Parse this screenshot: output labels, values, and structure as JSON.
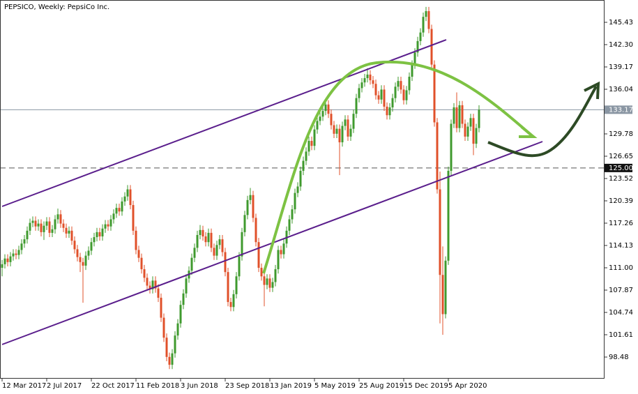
{
  "chart_data": {
    "type": "candlestick",
    "title": "PEPSICO, Weekly:  PepsiCo Inc.",
    "up_color": "#3f9a2e",
    "down_color": "#e0502a",
    "ylim": [
      95.45,
      148.56
    ],
    "yticks": [
      145.43,
      {
        "value": 142.3,
        "label": "142.30"
      },
      139.17,
      136.04,
      129.78,
      126.65,
      123.52,
      120.39,
      117.26,
      114.13,
      {
        "value": 111,
        "label": "111.00"
      },
      107.87,
      104.74,
      101.61,
      98.48
    ],
    "xtick_labels": [
      "12 Mar 2017",
      "2 Jul 2017",
      "22 Oct 2017",
      "11 Feb 2018",
      "3 Jun 2018",
      "23 Sep 2018",
      "13 Jan 2019",
      "5 May 2019",
      "25 Aug 2019",
      "15 Dec 2019",
      "5 Apr 2020"
    ],
    "price_line": 133.17,
    "level_line": {
      "value": 125,
      "label": "125.00"
    },
    "candles": [
      [
        111.0,
        112.1,
        109.8,
        111.5
      ],
      [
        111.5,
        112.9,
        110.9,
        112.3
      ],
      [
        112.3,
        112.9,
        111.2,
        111.8
      ],
      [
        111.8,
        113.2,
        111.2,
        112.6
      ],
      [
        112.6,
        113.6,
        112.0,
        113.0
      ],
      [
        113.0,
        113.6,
        112.2,
        112.8
      ],
      [
        112.8,
        114.1,
        112.2,
        113.5
      ],
      [
        113.5,
        115.0,
        112.9,
        114.4
      ],
      [
        114.4,
        115.6,
        113.8,
        115.0
      ],
      [
        115.0,
        116.8,
        114.4,
        116.2
      ],
      [
        116.2,
        117.9,
        115.6,
        117.3
      ],
      [
        117.3,
        118.2,
        116.7,
        117.6
      ],
      [
        117.6,
        118.2,
        116.2,
        116.8
      ],
      [
        116.8,
        117.8,
        116.2,
        117.2
      ],
      [
        117.2,
        117.8,
        115.4,
        116.0
      ],
      [
        116.0,
        117.5,
        114.9,
        116.9
      ],
      [
        116.9,
        118.1,
        116.3,
        117.5
      ],
      [
        117.5,
        118.1,
        115.3,
        115.9
      ],
      [
        115.9,
        117.0,
        115.3,
        116.4
      ],
      [
        116.4,
        118.4,
        115.8,
        117.8
      ],
      [
        117.8,
        119.3,
        117.2,
        118.5
      ],
      [
        118.5,
        119.1,
        116.6,
        117.2
      ],
      [
        117.2,
        117.8,
        116.0,
        116.6
      ],
      [
        116.6,
        117.2,
        115.2,
        115.8
      ],
      [
        115.8,
        116.8,
        115.2,
        116.2
      ],
      [
        116.2,
        116.8,
        114.2,
        114.8
      ],
      [
        114.8,
        115.4,
        113.0,
        113.6
      ],
      [
        113.6,
        114.2,
        111.9,
        112.5
      ],
      [
        112.5,
        113.1,
        110.4,
        111.8
      ],
      [
        111.8,
        112.4,
        106.1,
        111.3
      ],
      [
        111.3,
        113.3,
        110.7,
        112.7
      ],
      [
        112.7,
        114.0,
        112.1,
        113.4
      ],
      [
        113.4,
        115.2,
        112.8,
        114.6
      ],
      [
        114.6,
        115.9,
        114.0,
        115.3
      ],
      [
        115.3,
        116.6,
        114.7,
        116.0
      ],
      [
        116.0,
        116.6,
        114.8,
        115.4
      ],
      [
        115.4,
        117.1,
        114.8,
        116.5
      ],
      [
        116.5,
        117.7,
        115.9,
        117.1
      ],
      [
        117.1,
        117.7,
        116.2,
        116.8
      ],
      [
        116.8,
        118.4,
        116.2,
        117.8
      ],
      [
        117.8,
        119.2,
        117.2,
        118.6
      ],
      [
        118.6,
        120.0,
        118.0,
        119.4
      ],
      [
        119.4,
        120.0,
        118.3,
        118.9
      ],
      [
        118.9,
        120.9,
        118.3,
        120.3
      ],
      [
        120.3,
        121.6,
        119.7,
        121.0
      ],
      [
        121.0,
        122.6,
        120.4,
        122.0
      ],
      [
        122.0,
        122.6,
        119.2,
        119.8
      ],
      [
        119.8,
        120.4,
        115.6,
        116.2
      ],
      [
        116.2,
        116.8,
        112.9,
        113.5
      ],
      [
        113.5,
        114.1,
        111.8,
        112.4
      ],
      [
        112.4,
        113.0,
        110.2,
        110.8
      ],
      [
        110.8,
        111.4,
        109.0,
        109.6
      ],
      [
        109.6,
        110.2,
        107.9,
        108.5
      ],
      [
        108.5,
        109.1,
        107.4,
        108.0
      ],
      [
        108.0,
        109.8,
        107.4,
        109.2
      ],
      [
        109.2,
        109.8,
        107.5,
        108.1
      ],
      [
        108.1,
        108.7,
        106.2,
        106.8
      ],
      [
        106.8,
        107.4,
        103.4,
        104.0
      ],
      [
        104.0,
        104.6,
        100.6,
        101.2
      ],
      [
        101.2,
        101.8,
        97.9,
        98.5
      ],
      [
        98.5,
        99.1,
        96.8,
        97.4
      ],
      [
        97.4,
        99.6,
        96.8,
        99.0
      ],
      [
        99.0,
        102.1,
        98.4,
        101.5
      ],
      [
        101.5,
        103.8,
        100.9,
        103.2
      ],
      [
        103.2,
        106.4,
        102.6,
        105.8
      ],
      [
        105.8,
        108.0,
        105.2,
        107.4
      ],
      [
        107.4,
        110.1,
        106.8,
        109.5
      ],
      [
        109.5,
        111.2,
        108.9,
        110.6
      ],
      [
        110.6,
        113.0,
        110.0,
        112.4
      ],
      [
        112.4,
        114.4,
        111.8,
        113.8
      ],
      [
        113.8,
        116.2,
        113.2,
        115.6
      ],
      [
        115.6,
        117.0,
        115.0,
        116.3
      ],
      [
        116.3,
        116.9,
        114.8,
        115.4
      ],
      [
        115.4,
        116.0,
        114.0,
        114.6
      ],
      [
        114.6,
        116.5,
        114.0,
        115.9
      ],
      [
        115.9,
        116.5,
        113.2,
        113.8
      ],
      [
        113.8,
        114.4,
        112.1,
        112.7
      ],
      [
        112.7,
        114.8,
        112.1,
        114.2
      ],
      [
        114.2,
        115.6,
        113.6,
        115.0
      ],
      [
        115.0,
        115.6,
        112.6,
        113.2
      ],
      [
        113.2,
        113.8,
        109.8,
        110.4
      ],
      [
        110.4,
        111.0,
        105.6,
        106.2
      ],
      [
        106.2,
        106.8,
        104.9,
        105.5
      ],
      [
        105.5,
        107.9,
        104.9,
        107.3
      ],
      [
        107.3,
        110.4,
        106.7,
        109.8
      ],
      [
        109.8,
        113.2,
        109.2,
        112.6
      ],
      [
        112.6,
        116.6,
        112.0,
        116.0
      ],
      [
        116.0,
        119.0,
        115.4,
        118.4
      ],
      [
        118.4,
        121.1,
        117.8,
        120.5
      ],
      [
        120.5,
        122.2,
        119.9,
        121.2
      ],
      [
        121.2,
        121.8,
        117.4,
        118.0
      ],
      [
        118.0,
        118.6,
        114.0,
        114.6
      ],
      [
        114.6,
        115.2,
        110.4,
        111.0
      ],
      [
        111.0,
        111.6,
        109.2,
        109.8
      ],
      [
        109.8,
        110.4,
        105.6,
        108.6
      ],
      [
        108.6,
        110.1,
        108.0,
        109.5
      ],
      [
        109.5,
        110.1,
        107.6,
        108.2
      ],
      [
        108.2,
        109.6,
        107.6,
        109.0
      ],
      [
        109.0,
        111.4,
        108.4,
        110.8
      ],
      [
        110.8,
        114.1,
        110.2,
        113.5
      ],
      [
        113.5,
        114.1,
        112.3,
        112.9
      ],
      [
        112.9,
        115.0,
        112.3,
        114.4
      ],
      [
        114.4,
        116.8,
        113.8,
        116.2
      ],
      [
        116.2,
        118.4,
        115.6,
        117.8
      ],
      [
        117.8,
        119.8,
        117.2,
        119.2
      ],
      [
        119.2,
        122.1,
        118.6,
        121.5
      ],
      [
        121.5,
        123.0,
        120.9,
        122.4
      ],
      [
        122.4,
        125.2,
        121.8,
        124.6
      ],
      [
        124.6,
        126.6,
        124.0,
        126.0
      ],
      [
        126.0,
        127.9,
        125.4,
        127.3
      ],
      [
        127.3,
        129.4,
        126.7,
        128.8
      ],
      [
        128.8,
        129.4,
        127.5,
        128.1
      ],
      [
        128.1,
        131.0,
        127.5,
        130.4
      ],
      [
        130.4,
        132.2,
        129.8,
        131.6
      ],
      [
        131.6,
        132.8,
        131.0,
        132.2
      ],
      [
        132.2,
        133.6,
        131.6,
        133.0
      ],
      [
        133.0,
        134.5,
        132.4,
        133.9
      ],
      [
        133.9,
        134.5,
        132.0,
        132.6
      ],
      [
        132.6,
        133.2,
        130.4,
        131.0
      ],
      [
        131.0,
        131.6,
        129.2,
        129.8
      ],
      [
        129.8,
        131.1,
        129.2,
        130.5
      ],
      [
        130.5,
        131.1,
        124.0,
        128.6
      ],
      [
        128.6,
        131.5,
        128.0,
        130.9
      ],
      [
        130.9,
        132.4,
        130.3,
        131.8
      ],
      [
        131.8,
        132.4,
        128.8,
        129.4
      ],
      [
        129.4,
        131.1,
        128.8,
        130.5
      ],
      [
        130.5,
        133.2,
        129.9,
        132.6
      ],
      [
        132.6,
        135.4,
        132.0,
        134.8
      ],
      [
        134.8,
        136.8,
        134.2,
        136.2
      ],
      [
        136.2,
        137.6,
        135.6,
        137.0
      ],
      [
        137.0,
        138.2,
        136.4,
        137.6
      ],
      [
        137.6,
        139.0,
        137.0,
        138.1
      ],
      [
        138.1,
        138.7,
        136.7,
        137.3
      ],
      [
        137.3,
        137.9,
        136.2,
        136.8
      ],
      [
        136.8,
        137.4,
        134.6,
        135.2
      ],
      [
        135.2,
        135.8,
        134.0,
        134.6
      ],
      [
        134.6,
        136.6,
        134.0,
        136.0
      ],
      [
        136.0,
        136.6,
        133.0,
        133.6
      ],
      [
        133.6,
        134.2,
        131.8,
        132.4
      ],
      [
        132.4,
        134.1,
        131.8,
        133.5
      ],
      [
        133.5,
        135.4,
        132.9,
        134.8
      ],
      [
        134.8,
        137.0,
        134.2,
        136.4
      ],
      [
        136.4,
        137.8,
        135.8,
        137.2
      ],
      [
        137.2,
        137.8,
        135.4,
        136.0
      ],
      [
        136.0,
        136.6,
        133.9,
        134.5
      ],
      [
        134.5,
        136.5,
        133.9,
        135.9
      ],
      [
        135.9,
        138.4,
        135.3,
        137.8
      ],
      [
        137.8,
        140.1,
        137.2,
        139.5
      ],
      [
        139.5,
        141.8,
        138.9,
        141.2
      ],
      [
        141.2,
        143.4,
        140.6,
        142.8
      ],
      [
        142.8,
        144.6,
        142.2,
        144.0
      ],
      [
        144.0,
        146.8,
        143.4,
        146.2
      ],
      [
        146.2,
        147.6,
        145.6,
        147.0
      ],
      [
        147.0,
        147.6,
        143.9,
        144.5
      ],
      [
        144.5,
        145.1,
        138.9,
        139.5
      ],
      [
        139.5,
        140.1,
        130.8,
        131.4
      ],
      [
        131.4,
        132.0,
        121.4,
        122.0
      ],
      [
        122.0,
        124.5,
        103.2,
        110.0
      ],
      [
        110.0,
        114.0,
        101.6,
        104.5
      ],
      [
        104.5,
        112.6,
        103.9,
        112.0
      ],
      [
        112.0,
        125.2,
        111.4,
        124.6
      ],
      [
        124.6,
        131.8,
        124.0,
        131.2
      ],
      [
        131.2,
        134.1,
        130.6,
        133.5
      ],
      [
        133.5,
        135.6,
        130.0,
        130.6
      ],
      [
        130.6,
        134.4,
        130.0,
        133.8
      ],
      [
        133.8,
        134.4,
        130.6,
        131.2
      ],
      [
        131.2,
        131.8,
        128.8,
        129.4
      ],
      [
        129.4,
        131.4,
        128.8,
        130.8
      ],
      [
        130.8,
        132.6,
        130.2,
        132.0
      ],
      [
        132.0,
        132.6,
        126.8,
        128.4
      ],
      [
        128.4,
        131.2,
        127.8,
        130.6
      ],
      [
        130.6,
        133.8,
        130.0,
        133.17
      ]
    ]
  }
}
